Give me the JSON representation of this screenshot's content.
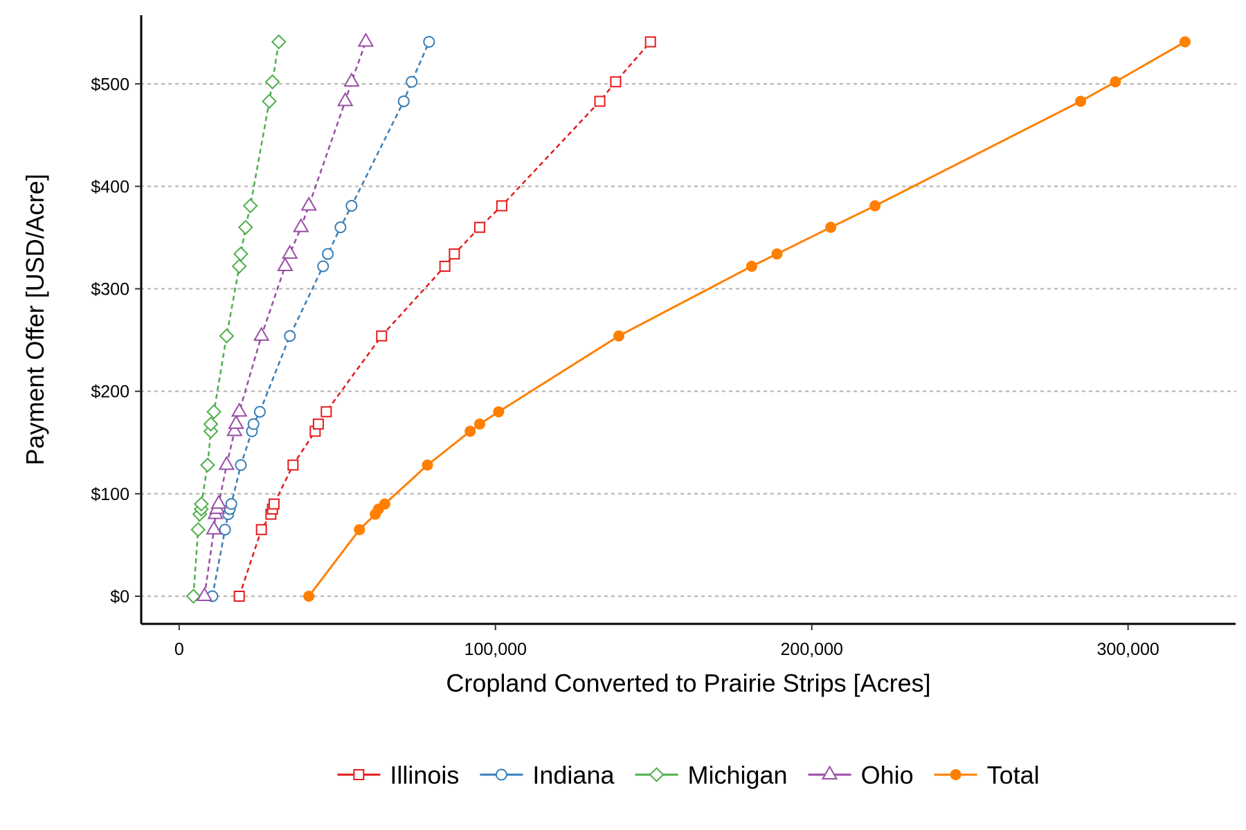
{
  "chart_data": {
    "type": "line",
    "title": "",
    "xlabel": "Cropland Converted to Prairie Strips [Acres]",
    "ylabel": "Payment Offer [USD/Acre]",
    "xlim": [
      -12000,
      334000
    ],
    "ylim": [
      -27,
      567
    ],
    "x_ticks": [
      0,
      100000,
      200000,
      300000
    ],
    "x_tick_labels": [
      "0",
      "100,000",
      "200,000",
      "300,000"
    ],
    "y_ticks": [
      0,
      100,
      200,
      300,
      400,
      500
    ],
    "y_tick_labels": [
      "$0",
      "$100",
      "$200",
      "$300",
      "$400",
      "$500"
    ],
    "grid": "horizontal dotted",
    "legend_position": "bottom",
    "series": [
      {
        "name": "Illinois",
        "color": "#E41A1C",
        "marker": "square-open",
        "line": "dashed",
        "points": [
          [
            19000,
            0
          ],
          [
            26000,
            65
          ],
          [
            29000,
            80
          ],
          [
            29500,
            85
          ],
          [
            30000,
            90
          ],
          [
            36000,
            128
          ],
          [
            43000,
            161
          ],
          [
            44000,
            168
          ],
          [
            46500,
            180
          ],
          [
            64000,
            254
          ],
          [
            84000,
            322
          ],
          [
            87000,
            334
          ],
          [
            95000,
            360
          ],
          [
            102000,
            381
          ],
          [
            133000,
            483
          ],
          [
            138000,
            502
          ],
          [
            149000,
            541
          ]
        ]
      },
      {
        "name": "Indiana",
        "color": "#377EB8",
        "marker": "circle-open",
        "line": "dashed",
        "points": [
          [
            10500,
            0
          ],
          [
            14500,
            65
          ],
          [
            15500,
            80
          ],
          [
            16000,
            85
          ],
          [
            16500,
            90
          ],
          [
            19500,
            128
          ],
          [
            23000,
            161
          ],
          [
            23500,
            168
          ],
          [
            25500,
            180
          ],
          [
            35000,
            254
          ],
          [
            45500,
            322
          ],
          [
            47000,
            334
          ],
          [
            51000,
            360
          ],
          [
            54500,
            381
          ],
          [
            71000,
            483
          ],
          [
            73500,
            502
          ],
          [
            79000,
            541
          ]
        ]
      },
      {
        "name": "Michigan",
        "color": "#4DAF4A",
        "marker": "diamond-open",
        "line": "dashed",
        "points": [
          [
            4500,
            0
          ],
          [
            6000,
            65
          ],
          [
            6500,
            80
          ],
          [
            7000,
            85
          ],
          [
            7000,
            90
          ],
          [
            9000,
            128
          ],
          [
            10000,
            161
          ],
          [
            10000,
            168
          ],
          [
            11000,
            180
          ],
          [
            15000,
            254
          ],
          [
            19000,
            322
          ],
          [
            19500,
            334
          ],
          [
            21000,
            360
          ],
          [
            22500,
            381
          ],
          [
            28500,
            483
          ],
          [
            29500,
            502
          ],
          [
            31500,
            541
          ]
        ]
      },
      {
        "name": "Ohio",
        "color": "#984EA3",
        "marker": "triangle-open",
        "line": "dashed",
        "points": [
          [
            8000,
            0
          ],
          [
            11000,
            65
          ],
          [
            11500,
            80
          ],
          [
            12000,
            85
          ],
          [
            12500,
            90
          ],
          [
            15000,
            128
          ],
          [
            17500,
            161
          ],
          [
            18000,
            168
          ],
          [
            19000,
            180
          ],
          [
            26000,
            254
          ],
          [
            33500,
            322
          ],
          [
            35000,
            334
          ],
          [
            38500,
            360
          ],
          [
            41000,
            381
          ],
          [
            52500,
            483
          ],
          [
            54500,
            502
          ],
          [
            59000,
            541
          ]
        ]
      },
      {
        "name": "Total",
        "color": "#FF7F00",
        "marker": "circle-filled",
        "line": "solid",
        "points": [
          [
            41000,
            0
          ],
          [
            57000,
            65
          ],
          [
            62000,
            80
          ],
          [
            63000,
            85
          ],
          [
            65000,
            90
          ],
          [
            78500,
            128
          ],
          [
            92000,
            161
          ],
          [
            95000,
            168
          ],
          [
            101000,
            180
          ],
          [
            139000,
            254
          ],
          [
            181000,
            322
          ],
          [
            189000,
            334
          ],
          [
            206000,
            360
          ],
          [
            220000,
            381
          ],
          [
            285000,
            483
          ],
          [
            296000,
            502
          ],
          [
            318000,
            541
          ]
        ]
      }
    ]
  }
}
